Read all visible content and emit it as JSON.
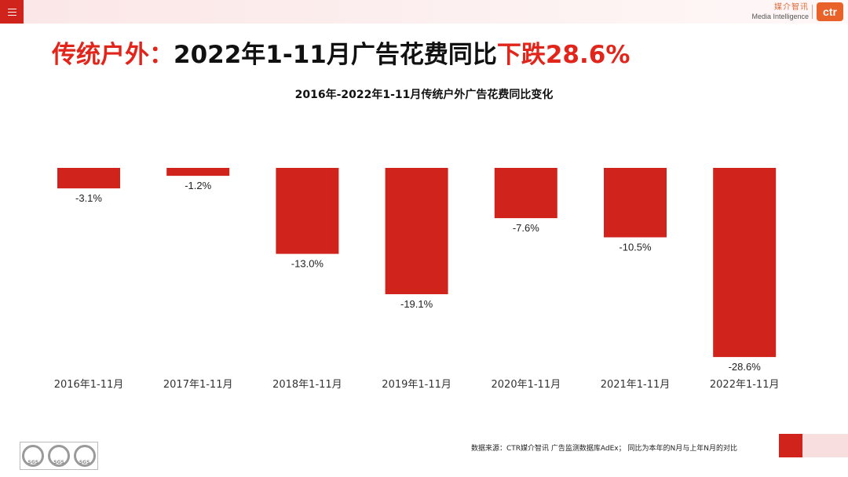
{
  "header": {
    "brand_cn": "媒介智讯",
    "brand_en": "Media Intelligence",
    "logo_text": "ctr"
  },
  "headline": {
    "prefix": "传统户外：",
    "middle": "2022年1-11月广告花费同比",
    "highlight": "下跌28.6%"
  },
  "chart_data": {
    "type": "bar",
    "title": "2016年-2022年1-11月传统户外广告花费同比变化",
    "categories": [
      "2016年1-11月",
      "2017年1-11月",
      "2018年1-11月",
      "2019年1-11月",
      "2020年1-11月",
      "2021年1-11月",
      "2022年1-11月"
    ],
    "values": [
      -3.1,
      -1.2,
      -13.0,
      -19.1,
      -7.6,
      -10.5,
      -28.6
    ],
    "value_labels": [
      "-3.1%",
      "-1.2%",
      "-13.0%",
      "-19.1%",
      "-7.6%",
      "-10.5%",
      "-28.6%"
    ],
    "ylim": [
      -30,
      0
    ],
    "grid": false,
    "bar_color": "#d0231c"
  },
  "footer": {
    "source": "数据来源：CTR媒介智讯 广告监测数据库AdEx；  同比为本年的N月与上年N月的对比",
    "badges": [
      "SGS",
      "SGS",
      "SGS"
    ]
  }
}
